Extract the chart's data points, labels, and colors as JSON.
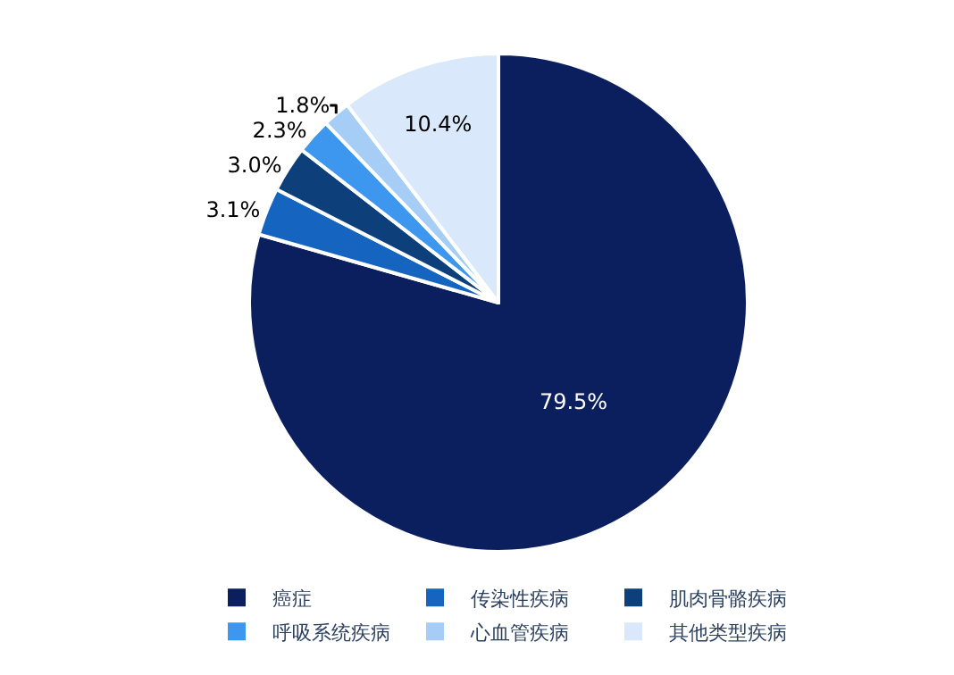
{
  "chart_data": {
    "type": "pie",
    "categories": [
      "癌症",
      "传染性疾病",
      "肌肉骨骼疾病",
      "呼吸系统疾病",
      "心血管疾病",
      "其他类型疾病"
    ],
    "values": [
      79.5,
      3.1,
      3.0,
      2.3,
      1.8,
      10.4
    ],
    "colors": [
      "#0b1f5e",
      "#1565c0",
      "#0d3f7a",
      "#3d97ee",
      "#a5cdf6",
      "#d9e8fa"
    ],
    "value_labels": [
      "79.5%",
      "3.1%",
      "3.0%",
      "2.3%",
      "1.8%",
      "10.4%"
    ],
    "legend": "bottom"
  }
}
